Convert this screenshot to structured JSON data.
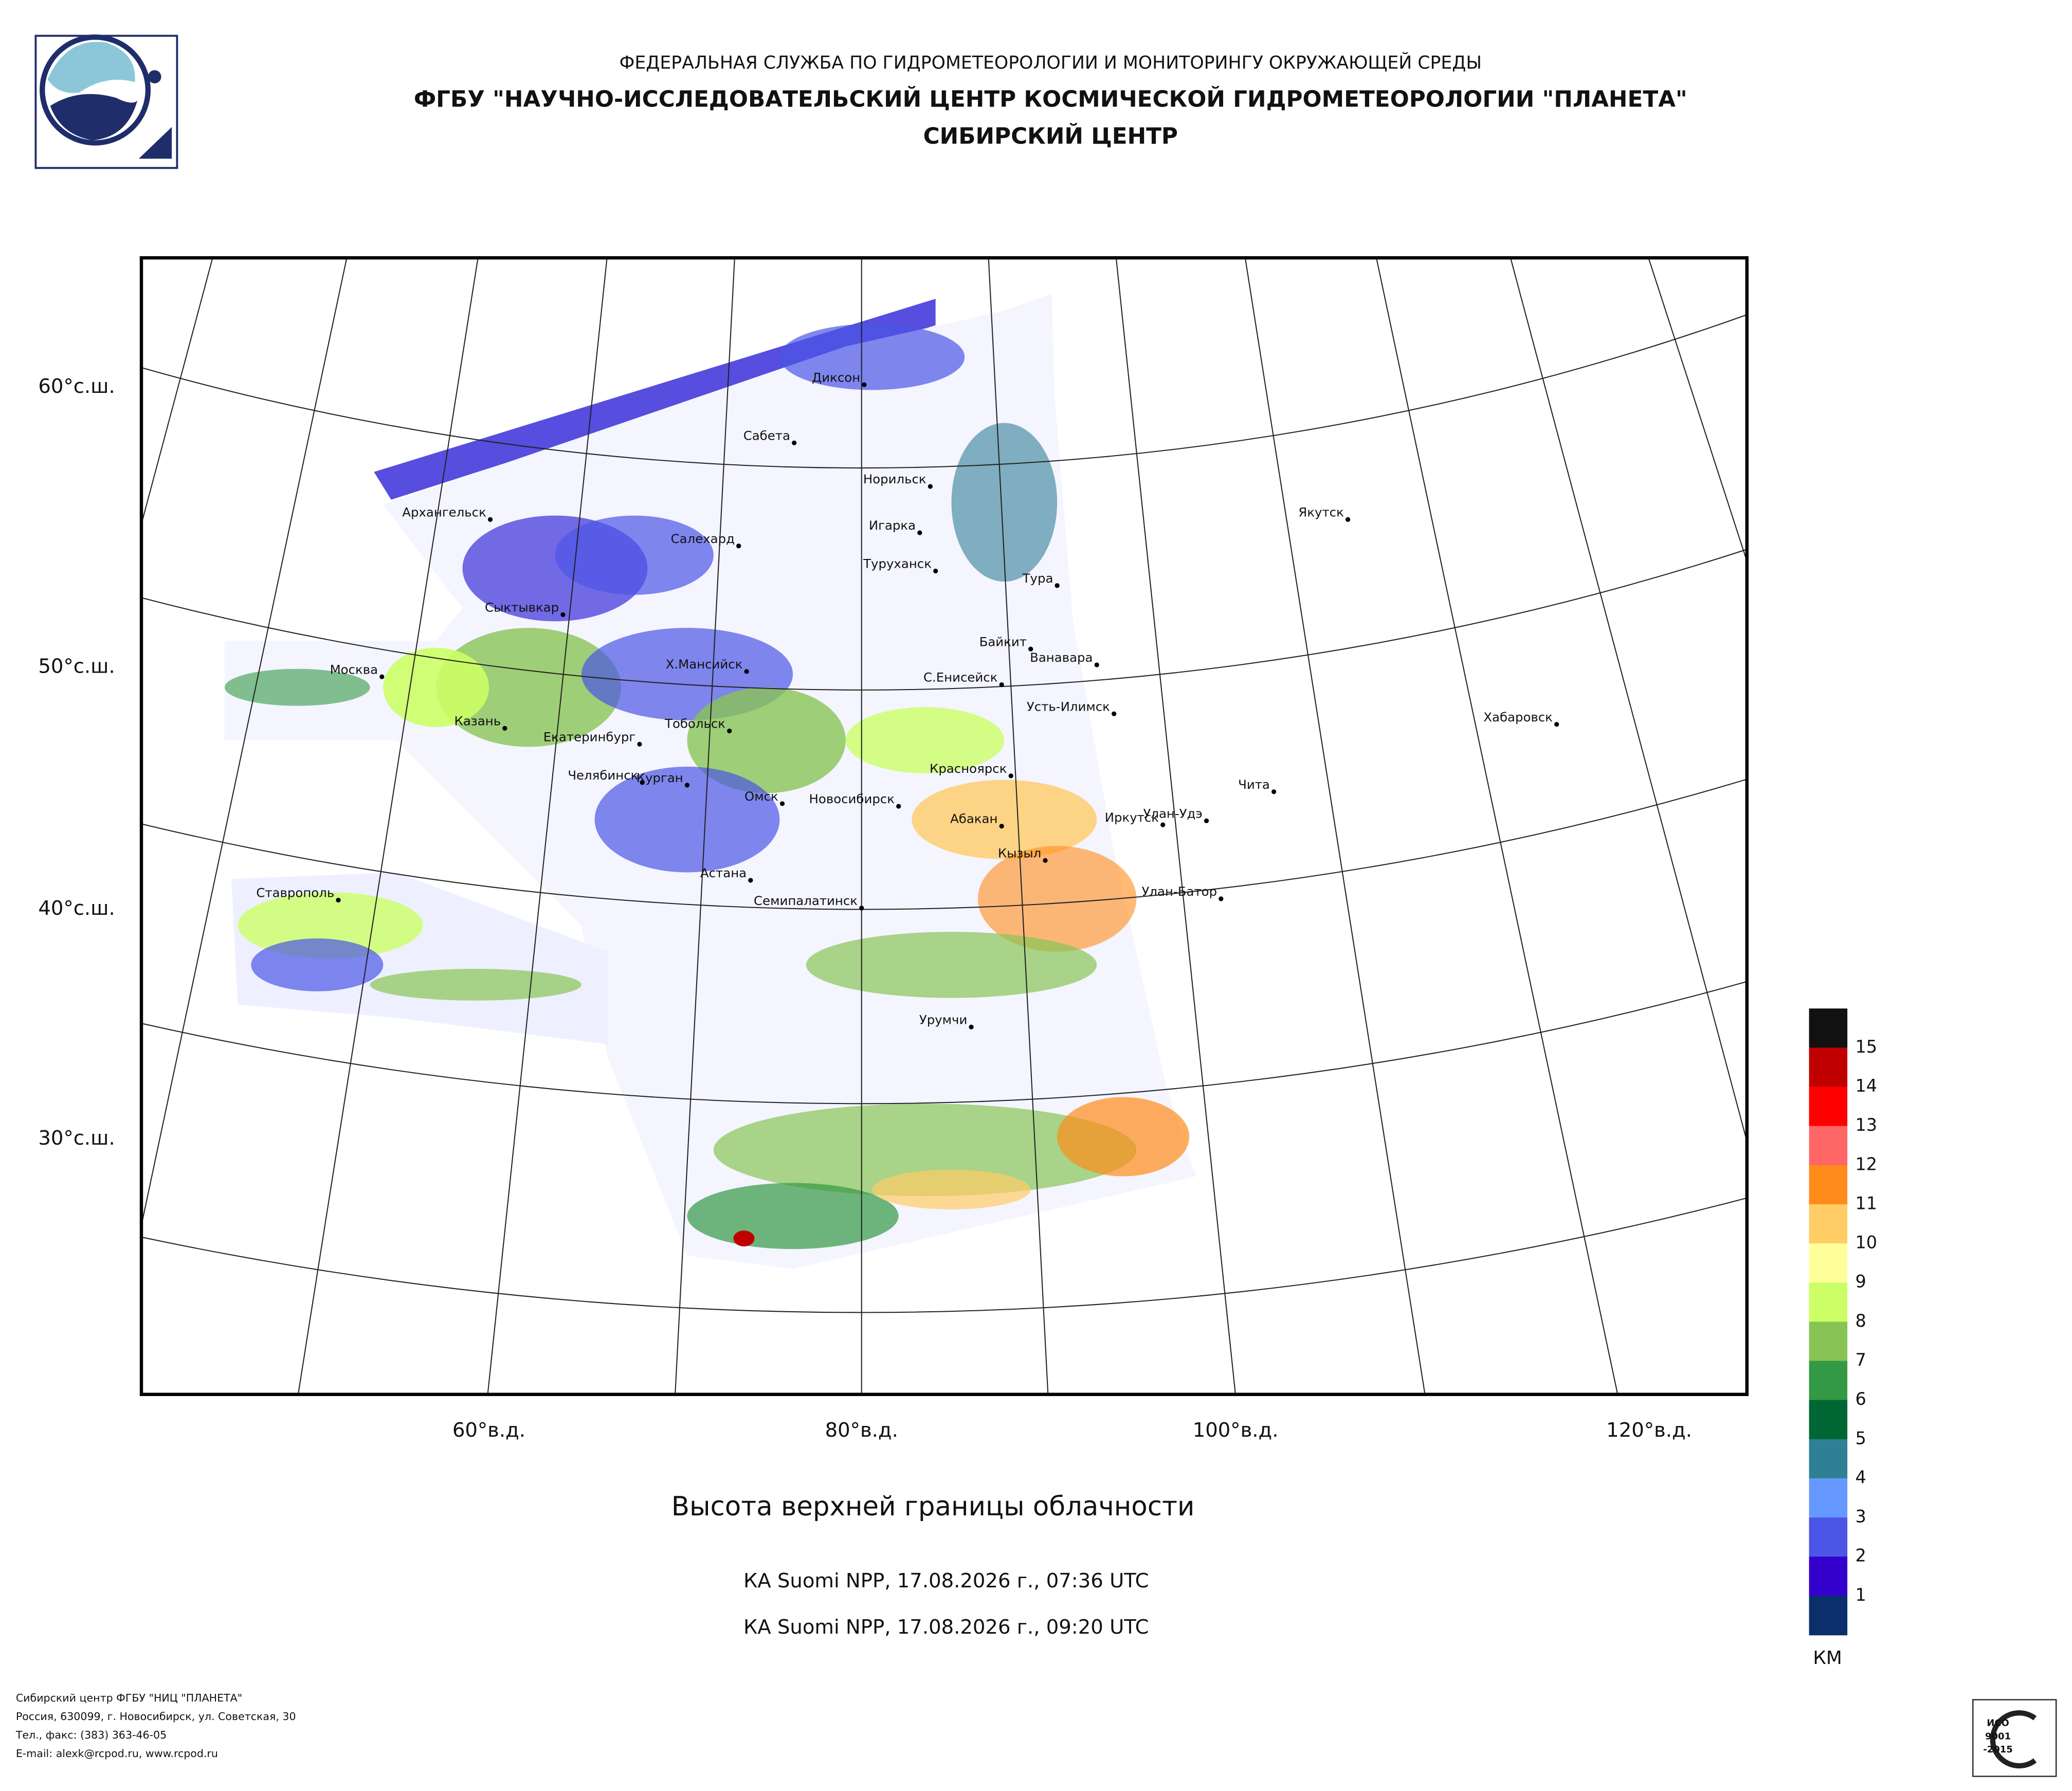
{
  "header": {
    "line1": "ФЕДЕРАЛЬНАЯ СЛУЖБА ПО ГИДРОМЕТЕОРОЛОГИИ И МОНИТОРИНГУ ОКРУЖАЮЩЕЙ СРЕДЫ",
    "line2": "ФГБУ \"НАУЧНО-ИССЛЕДОВАТЕЛЬСКИЙ ЦЕНТР КОСМИЧЕСКОЙ ГИДРОМЕТЕОРОЛОГИИ \"ПЛАНЕТА\"",
    "line3": "СИБИРСКИЙ ЦЕНТР"
  },
  "map": {
    "lat_labels": [
      "60°с.ш.",
      "50°с.ш.",
      "40°с.ш.",
      "30°с.ш."
    ],
    "lon_labels": [
      "60°в.д.",
      "80°в.д.",
      "100°в.д.",
      "120°в.д."
    ],
    "cities": [
      "Диксон",
      "Сабета",
      "Норильск",
      "Игарка",
      "Туруханск",
      "Тура",
      "Якутск",
      "Архангельск",
      "Салехард",
      "Сыктывкар",
      "Байкит",
      "Ванавара",
      "Москва",
      "Х.Мансийск",
      "С.Енисейск",
      "Усть-Илимск",
      "Хабаровск",
      "Казань",
      "Тобольск",
      "Екатеринбург",
      "Красноярск",
      "Чита",
      "Челябинск",
      "Курган",
      "Омск",
      "Новосибирск",
      "Улан-Удэ",
      "Абакан",
      "Иркутск",
      "Кызыл",
      "Астана",
      "Улан-Батор",
      "Ставрополь",
      "Семипалатинск",
      "Урумчи"
    ]
  },
  "legend": {
    "levels": [
      1,
      2,
      3,
      4,
      5,
      6,
      7,
      8,
      9,
      10,
      11,
      12,
      13,
      14,
      15
    ],
    "colors": [
      "#0b2f6b",
      "#3300cc",
      "#4b55e6",
      "#6699ff",
      "#2f7f95",
      "#006633",
      "#339944",
      "#88c455",
      "#ccff66",
      "#ffff99",
      "#ffcc66",
      "#ff8c1a",
      "#ff6666",
      "#ff0000",
      "#c00000",
      "#111111"
    ],
    "unit": "КМ"
  },
  "caption": {
    "title": "Высота верхней границы облачности",
    "passes": [
      "КА Suomi NPP, 17.08.2026 г., 07:36 UTC",
      "КА Suomi NPP, 17.08.2026 г., 09:20 UTC"
    ]
  },
  "footer": {
    "lines": [
      "Сибирский центр ФГБУ \"НИЦ \"ПЛАНЕТА\"",
      "Россия, 630099, г. Новосибирск, ул. Советская, 30",
      "Тел., факс: (383) 363-46-05",
      "E-mail: alexk@rcpod.ru, www.rcpod.ru"
    ],
    "badge": [
      "ИСО",
      "9001",
      "-2015"
    ]
  }
}
